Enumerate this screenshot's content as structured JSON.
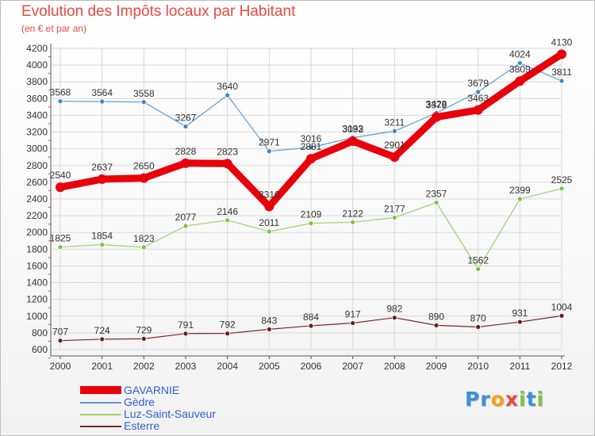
{
  "title": "Evolution des Impôts locaux par Habitant",
  "subtitle": "(en € et par an)",
  "logo": {
    "letters": [
      "P",
      "r",
      "o",
      "x",
      "i",
      "t",
      "i"
    ],
    "colors": [
      "#3a8fd8",
      "#3a8fd8",
      "#f7a11a",
      "#e8493f",
      "#7ec242",
      "#3a8fd8",
      "#7ec242"
    ]
  },
  "chart_data": {
    "type": "line",
    "title": "Evolution des Impôts locaux par Habitant",
    "subtitle": "(en € et par an)",
    "x": [
      "2000",
      "2001",
      "2002",
      "2003",
      "2004",
      "2005",
      "2006",
      "2007",
      "2008",
      "2009",
      "2010",
      "2011",
      "2012"
    ],
    "ylim": [
      600,
      4200
    ],
    "yticks": [
      "600",
      "800",
      "1000",
      "1200",
      "1400",
      "1600",
      "1800",
      "2000",
      "2200",
      "2400",
      "2600",
      "2800",
      "3000",
      "3200",
      "3400",
      "3600",
      "3800",
      "4000",
      "4200"
    ],
    "grid": true,
    "legend_position": "bottom-left",
    "series": [
      {
        "name": "GAVARNIE",
        "color": "#e8000b",
        "values": [
          2540,
          2637,
          2650,
          2828,
          2823,
          2310,
          2881,
          3092,
          2901,
          3379,
          3463,
          3809,
          4130
        ],
        "labels": [
          "2540",
          "2637",
          "2650",
          "2828",
          "2823",
          "2310",
          "2881",
          "3092",
          "2901",
          "3379",
          "3463",
          "3809",
          "4130"
        ]
      },
      {
        "name": "Gèdre",
        "color": "#5a9bd3",
        "values": [
          3568,
          3564,
          3558,
          3267,
          3640,
          2971,
          3016,
          3133,
          3211,
          3428,
          3679,
          4024,
          3811
        ],
        "labels": [
          "3568",
          "3564",
          "3558",
          "3267",
          "3640",
          "2971",
          "3016",
          "3133",
          "3211",
          "3428",
          "3679",
          "4024",
          "3811"
        ]
      },
      {
        "name": "Luz-Saint-Sauveur",
        "color": "#9bd36b",
        "values": [
          1825,
          1854,
          1823,
          2077,
          2146,
          2011,
          2109,
          2122,
          2177,
          2357,
          1562,
          2399,
          2525
        ],
        "labels": [
          "1825",
          "1854",
          "1823",
          "2077",
          "2146",
          "2011",
          "2109",
          "2122",
          "2177",
          "2357",
          "1562",
          "2399",
          "2525"
        ]
      },
      {
        "name": "Esterre",
        "color": "#7a2a2a",
        "values": [
          707,
          724,
          729,
          791,
          792,
          843,
          884,
          917,
          982,
          890,
          870,
          931,
          1004
        ],
        "labels": [
          "707",
          "724",
          "729",
          "791",
          "792",
          "843",
          "884",
          "917",
          "982",
          "890",
          "870",
          "931",
          "1004"
        ]
      }
    ]
  }
}
